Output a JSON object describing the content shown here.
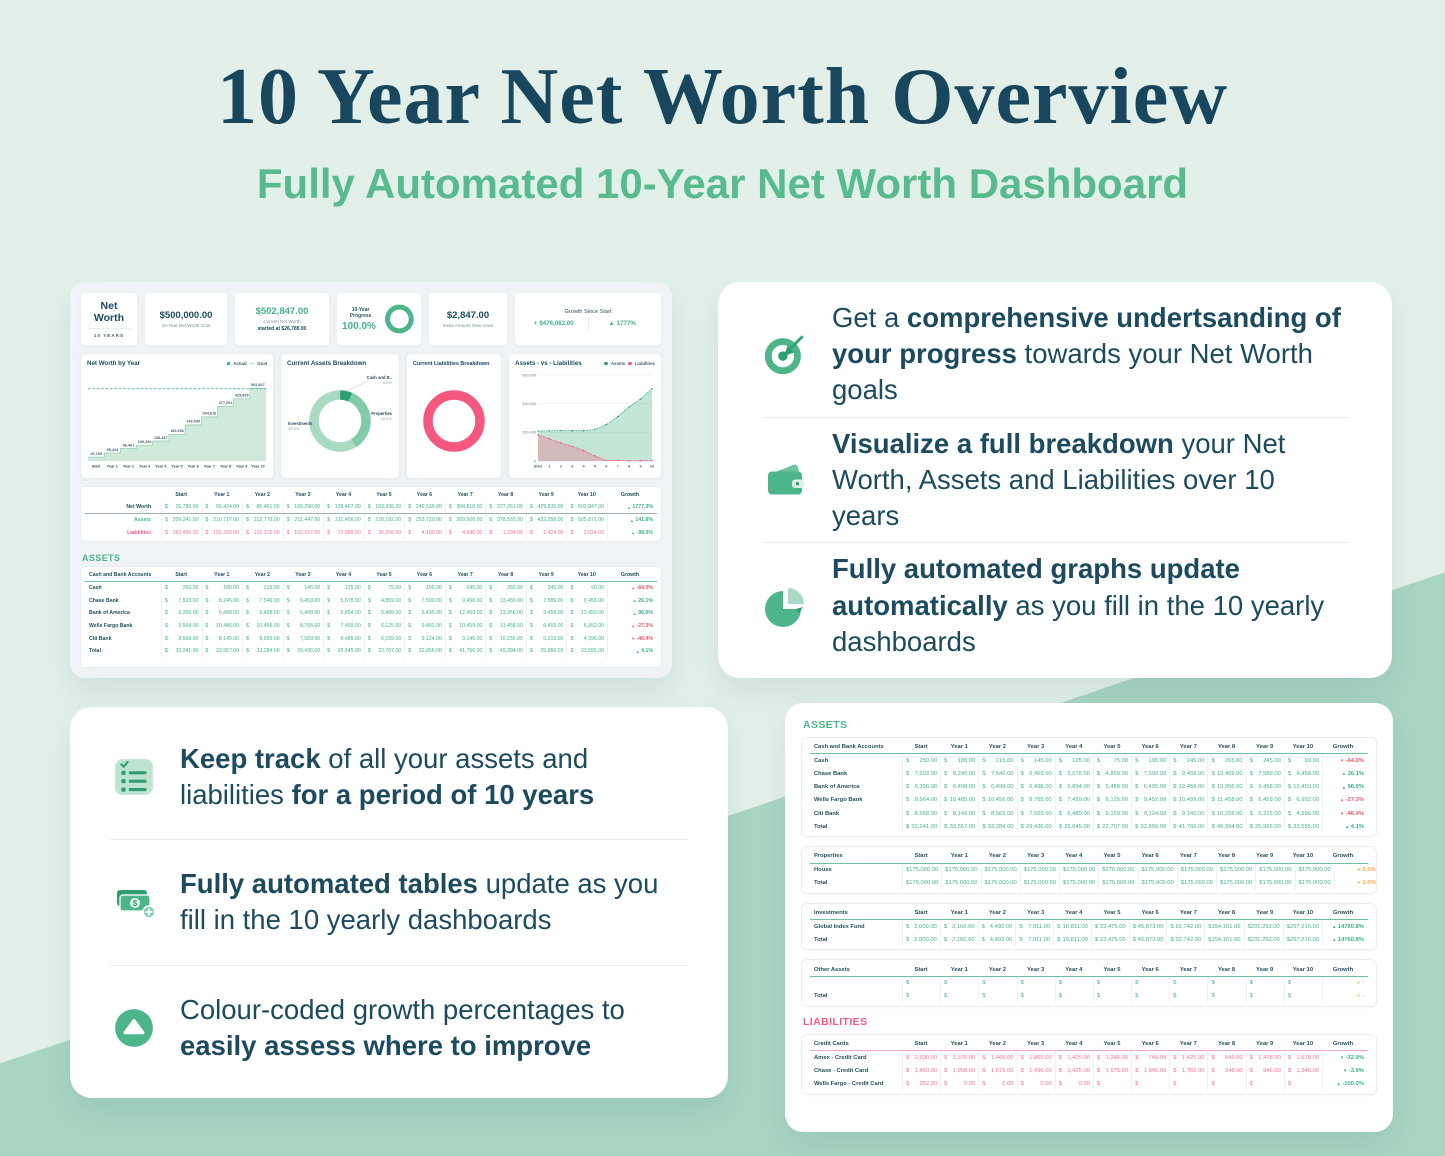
{
  "page": {
    "title": "10 Year Net Worth Overview",
    "subtitle": "Fully Automated 10-Year Net Worth Dashboard"
  },
  "colors": {
    "green": "#4db58a",
    "green-dark": "#2f9e70",
    "green-light": "#a9dbc3",
    "navy": "#1c4a5e",
    "pink": "#f4587e",
    "red": "#ec5565",
    "orange": "#f2a93b",
    "mint": "#e3f0ea",
    "band": "#a9d6c3",
    "money-green": "#44b187",
    "money-pink": "#f2718c"
  },
  "dashboard": {
    "stats": {
      "title_box": {
        "title": "Net Worth",
        "subtitle": "10 YEARS"
      },
      "goal": {
        "value": "$500,000.00",
        "label": "10-Year Net Worth Goal"
      },
      "current": {
        "value": "$502,847.00",
        "label": "Current Net Worth",
        "note": "started at $26,785.00"
      },
      "progress": {
        "label": "10-Year Progress",
        "value": "100.0%"
      },
      "extra": {
        "value": "$2,847.00",
        "label": "Extra Amount Over Goal"
      },
      "growth": {
        "label": "Growth Since Start",
        "amount_icon": "+",
        "amount": "$476,062.00",
        "percent_icon": "▲",
        "percent": "1777%"
      }
    },
    "assets_heading": "ASSETS"
  },
  "chart_data": [
    {
      "type": "step-area",
      "title": "Net Worth by Year",
      "legend": [
        {
          "label": "Actual",
          "style": "square"
        },
        {
          "label": "Goal",
          "style": "dash"
        }
      ],
      "categories": [
        "Start",
        "Year 1",
        "Year 2",
        "Year 3",
        "Year 4",
        "Year 5",
        "Year 6",
        "Year 7",
        "Year 8",
        "Year 9",
        "Year 10"
      ],
      "values": [
        26785,
        55424,
        86461,
        109290,
        138467,
        183936,
        249539,
        304818,
        377261,
        429835,
        502847
      ],
      "point_labels": [
        "26,785",
        "55,424",
        "86,461",
        "109,290",
        "138,467",
        "183,936",
        "249,539",
        "304,818",
        "377,261",
        "429,835",
        "502,847"
      ],
      "goal_value": 500000,
      "ylim": [
        0,
        560000
      ],
      "legend_position": "top-right",
      "grid": false
    },
    {
      "type": "donut",
      "title": "Current Assets Breakdown",
      "slices": [
        {
          "label": "Cash and B..",
          "pct_label": "6.6%",
          "value": 6.6,
          "color": "#2f9e70",
          "side": "right-top"
        },
        {
          "label": "Properties",
          "pct_label": "34.6%",
          "value": 34.6,
          "color": "#82cba8",
          "side": "right"
        },
        {
          "label": "Investments",
          "pct_label": "58.8%",
          "value": 58.8,
          "color": "#a9dbc3",
          "side": "left"
        }
      ]
    },
    {
      "type": "donut",
      "title": "Current Liabilities Breakdown",
      "slices": [
        {
          "label": "",
          "pct_label": "",
          "value": 100,
          "color": "#f4587e",
          "side": "none"
        }
      ]
    },
    {
      "type": "area",
      "title": "Assets - vs - Liabilities",
      "legend": [
        {
          "label": "Assets",
          "color": "#2f9e70"
        },
        {
          "label": "Liabilities",
          "color": "#f4587e"
        }
      ],
      "x": [
        "Start",
        "1",
        "2",
        "3",
        "4",
        "5",
        "6",
        "7",
        "8",
        "9",
        "10"
      ],
      "series": [
        {
          "name": "Assets",
          "color": "#2fa878",
          "fill": "rgba(124,200,165,0.45)",
          "values": [
            209241,
            210717,
            212776,
            211447,
            211456,
            220192,
            253729,
            309508,
            378555,
            432259,
            505871
          ]
        },
        {
          "name": "Liabilities",
          "color": "#f4587e",
          "fill": "rgba(244,88,126,0.30)",
          "values": [
            182456,
            155293,
            126315,
            102157,
            72989,
            36256,
            4190,
            4690,
            1294,
            2424,
            3024
          ]
        }
      ],
      "yticks": [
        {
          "v": 0,
          "label": "0"
        },
        {
          "v": 200000,
          "label": "200,000"
        },
        {
          "v": 400000,
          "label": "400,000"
        },
        {
          "v": 600000,
          "label": "600,000"
        }
      ],
      "ylim": [
        0,
        600000
      ],
      "legend_position": "top-right",
      "grid": true
    }
  ],
  "tables": {
    "columns": [
      "Start",
      "Year 1",
      "Year 2",
      "Year 3",
      "Year 4",
      "Year 5",
      "Year 6",
      "Year 7",
      "Year 8",
      "Year 9",
      "Year 10",
      "Growth"
    ],
    "net_worth": {
      "first_col": "",
      "variant": "networth",
      "rows": [
        {
          "label": "Net Worth",
          "lcls": "navy",
          "vcls": "green",
          "values": [
            "26,785.00",
            "55,424.00",
            "86,461.00",
            "109,290.00",
            "138,467.00",
            "183,936.00",
            "249,539.00",
            "304,818.00",
            "377,261.00",
            "429,835.00",
            "502,847.00"
          ],
          "growth": {
            "icon": "up",
            "text": "1777.3%",
            "color": "green"
          }
        },
        {
          "label": "Assets",
          "lcls": "green",
          "vcls": "green",
          "values": [
            "209,241.00",
            "210,717.00",
            "212,776.00",
            "211,447.00",
            "211,456.00",
            "220,192.00",
            "253,729.00",
            "309,508.00",
            "378,555.00",
            "432,259.00",
            "505,871.00"
          ],
          "growth": {
            "icon": "up",
            "text": "141.8%",
            "color": "green"
          }
        },
        {
          "label": "Liabilities",
          "lcls": "pink",
          "vcls": "pink",
          "values": [
            "182,456.00",
            "155,293.00",
            "126,315.00",
            "102,157.00",
            "72,989.00",
            "36,256.00",
            "4,190.00",
            "4,690.00",
            "1,294.00",
            "2,424.00",
            "3,024.00"
          ],
          "growth": {
            "icon": "down",
            "text": "-98.3%",
            "color": "green"
          }
        }
      ]
    },
    "cash_bank": {
      "first_col": "Cash and Bank Accounts",
      "accent": "green",
      "rows": [
        {
          "label": "Cash",
          "vcls": "green",
          "values": [
            "250.00",
            "180.00",
            "215.00",
            "145.00",
            "125.00",
            "75.00",
            "195.00",
            "245.00",
            "265.00",
            "245.00",
            "90.00"
          ],
          "growth": {
            "icon": "down",
            "text": "-64.0%",
            "color": "red"
          }
        },
        {
          "label": "Chase Bank",
          "vcls": "green",
          "values": [
            "7,503.00",
            "8,245.00",
            "7,546.00",
            "6,459.00",
            "5,678.00",
            "4,859.00",
            "7,590.00",
            "9,458.00",
            "13,459.00",
            "7,589.00",
            "9,458.00"
          ],
          "growth": {
            "icon": "up",
            "text": "26.1%",
            "color": "green"
          }
        },
        {
          "label": "Bank of America",
          "vcls": "green",
          "values": [
            "6,356.00",
            "6,498.00",
            "6,498.00",
            "6,498.00",
            "5,894.00",
            "5,489.00",
            "6,495.00",
            "12,459.00",
            "13,956.00",
            "9,458.00",
            "12,459.00"
          ],
          "growth": {
            "icon": "up",
            "text": "96.0%",
            "color": "green"
          }
        },
        {
          "label": "Wells Fargo Bank",
          "vcls": "green",
          "values": [
            "9,564.00",
            "10,485.00",
            "10,456.00",
            "8,765.00",
            "7,459.00",
            "6,125.00",
            "9,452.00",
            "10,459.00",
            "11,458.00",
            "6,459.00",
            "6,952.00"
          ],
          "growth": {
            "icon": "down",
            "text": "-27.3%",
            "color": "red"
          }
        },
        {
          "label": "Citi Bank",
          "vcls": "green",
          "values": [
            "8,568.00",
            "8,149.00",
            "8,569.00",
            "7,569.00",
            "6,489.00",
            "6,159.00",
            "9,124.00",
            "9,145.00",
            "10,256.00",
            "5,215.00",
            "4,596.00"
          ],
          "growth": {
            "icon": "down",
            "text": "-46.4%",
            "color": "red"
          }
        },
        {
          "label": "Total",
          "vcls": "green",
          "bold": true,
          "values": [
            "32,241.00",
            "33,557.00",
            "33,284.00",
            "29,436.00",
            "25,645.00",
            "22,707.00",
            "32,856.00",
            "41,766.00",
            "49,394.00",
            "25,966.00",
            "33,555.00"
          ],
          "growth": {
            "icon": "up",
            "text": "4.1%",
            "color": "green"
          }
        }
      ]
    },
    "properties": {
      "first_col": "Properties",
      "accent": "green",
      "rows": [
        {
          "label": "House",
          "vcls": "green",
          "values": [
            "175,000.00",
            "175,000.00",
            "175,000.00",
            "175,000.00",
            "175,000.00",
            "175,000.00",
            "175,000.00",
            "175,000.00",
            "175,000.00",
            "175,000.00",
            "175,000.00"
          ],
          "growth": {
            "icon": "check",
            "text": "0.0%",
            "color": "orange"
          }
        },
        {
          "label": "Total",
          "vcls": "green",
          "bold": true,
          "values": [
            "175,000.00",
            "175,000.00",
            "175,000.00",
            "175,000.00",
            "175,000.00",
            "175,000.00",
            "175,000.00",
            "175,000.00",
            "175,000.00",
            "175,000.00",
            "175,000.00"
          ],
          "growth": {
            "icon": "check",
            "text": "0.0%",
            "color": "orange"
          }
        }
      ]
    },
    "investments": {
      "first_col": "Investments",
      "accent": "green",
      "rows": [
        {
          "label": "Global Index Fund",
          "vcls": "green",
          "values": [
            "2,000.00",
            "2,160.00",
            "4,492.00",
            "7,011.00",
            "10,811.00",
            "22,475.00",
            "45,873.00",
            "92,742.00",
            "154,161.00",
            "231,293.00",
            "297,216.00"
          ],
          "growth": {
            "icon": "up",
            "text": "14760.8%",
            "color": "green"
          }
        },
        {
          "label": "Total",
          "vcls": "green",
          "bold": true,
          "values": [
            "2,000.00",
            "2,160.00",
            "4,492.00",
            "7,011.00",
            "10,811.00",
            "22,475.00",
            "45,873.00",
            "92,742.00",
            "154,161.00",
            "231,293.00",
            "297,216.00"
          ],
          "growth": {
            "icon": "up",
            "text": "14760.8%",
            "color": "green"
          }
        }
      ]
    },
    "other_assets": {
      "first_col": "Other Assets",
      "accent": "green",
      "rows": [
        {
          "label": "",
          "vcls": "green",
          "values": [
            "",
            "",
            "",
            "",
            "",
            "",
            "",
            "",
            "",
            "",
            ""
          ],
          "growth": {
            "icon": "check",
            "text": "-",
            "color": "orange"
          }
        },
        {
          "label": "Total",
          "vcls": "green",
          "bold": true,
          "values": [
            "",
            "",
            "",
            "",
            "",
            "",
            "",
            "",
            "",
            "",
            ""
          ],
          "growth": {
            "icon": "check",
            "text": "-",
            "color": "orange"
          }
        }
      ]
    },
    "credit_cards": {
      "first_col": "Credit Cards",
      "accent": "pink",
      "rows": [
        {
          "label": "Amex - Credit Card",
          "vcls": "pink",
          "values": [
            "2,500.00",
            "1,375.00",
            "1,465.00",
            "1,865.00",
            "1,425.00",
            "1,245.00",
            "745.00",
            "1,425.00",
            "946.00",
            "1,478.00",
            "1,678.00"
          ],
          "growth": {
            "icon": "down",
            "text": "-32.9%",
            "color": "green"
          }
        },
        {
          "label": "Chase - Credit Card",
          "vcls": "pink",
          "values": [
            "1,400.00",
            "1,958.00",
            "1,675.00",
            "1,496.00",
            "3,425.00",
            "1,675.00",
            "1,945.00",
            "1,765.00",
            "348.00",
            "946.00",
            "1,346.00"
          ],
          "growth": {
            "icon": "down",
            "text": "-3.9%",
            "color": "green"
          }
        },
        {
          "label": "Wells Fargo - Credit Card",
          "vcls": "pink",
          "values": [
            "252.00",
            "0.00",
            "0.00",
            "0.00",
            "0.00",
            "",
            "",
            "",
            "",
            "",
            ""
          ],
          "growth": {
            "icon": "down",
            "text": "-100.0%",
            "color": "green"
          }
        }
      ]
    }
  },
  "sheet": {
    "assets_heading": "ASSETS",
    "liabilities_heading": "LIABILITIES"
  },
  "features_right": {
    "items": [
      {
        "icon": "target-icon",
        "segments": [
          {
            "t": "Get a ",
            "b": false
          },
          {
            "t": "comprehensive undertsanding of your progress",
            "b": true
          },
          {
            "t": " towards your Net Worth goals",
            "b": false
          }
        ]
      },
      {
        "icon": "wallet-icon",
        "segments": [
          {
            "t": "Visualize a full breakdown",
            "b": true
          },
          {
            "t": " your Net Worth, Assets and Liabilities over 10 years",
            "b": false
          }
        ]
      },
      {
        "icon": "pie-chart-icon",
        "segments": [
          {
            "t": "Fully automated graphs update automatically",
            "b": true
          },
          {
            "t": " as you fill in the 10 yearly dashboards",
            "b": false
          }
        ]
      }
    ]
  },
  "features_left": {
    "items": [
      {
        "icon": "checklist-icon",
        "segments": [
          {
            "t": "Keep track",
            "b": true
          },
          {
            "t": " of all your assets and liabilities ",
            "b": false
          },
          {
            "t": "for a period of 10 years",
            "b": true
          }
        ]
      },
      {
        "icon": "banknotes-icon",
        "segments": [
          {
            "t": "Fully automated tables",
            "b": true
          },
          {
            "t": " update as you fill in the 10 yearly dashboards",
            "b": false
          }
        ]
      },
      {
        "icon": "growth-arrow-icon",
        "segments": [
          {
            "t": "Colour-coded growth percentages to ",
            "b": false
          },
          {
            "t": "easily assess where to improve",
            "b": true
          }
        ]
      }
    ]
  }
}
